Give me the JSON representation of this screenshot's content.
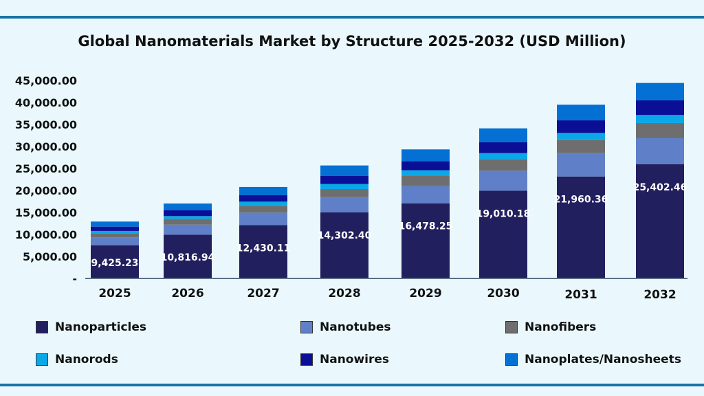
{
  "chart_data": {
    "type": "bar",
    "stacked": true,
    "title": "Global Nanomaterials Market by Structure 2025-2032 (USD Million)",
    "xlabel": "",
    "ylabel": "",
    "ylim": [
      0,
      45000
    ],
    "yticks": [
      "-",
      "5,000.00",
      "10,000.00",
      "15,000.00",
      "20,000.00",
      "25,000.00",
      "30,000.00",
      "35,000.00",
      "40,000.00",
      "45,000.00"
    ],
    "grid": false,
    "legend_position": "bottom",
    "categories": [
      "2025",
      "2026",
      "2027",
      "2028",
      "2029",
      "2030",
      "2031",
      "2032"
    ],
    "series": [
      {
        "name": "Nanoparticles",
        "color": "#221f5e",
        "values": [
          7550,
          9950,
          12140,
          15000,
          17080,
          19950,
          23170,
          25940
        ]
      },
      {
        "name": "Nanotubes",
        "color": "#5f80c8",
        "values": [
          1780,
          2280,
          2810,
          3490,
          3910,
          4530,
          5310,
          5940
        ]
      },
      {
        "name": "Nanofibers",
        "color": "#6e6e6e",
        "values": [
          830,
          1310,
          1560,
          1820,
          2290,
          2660,
          2970,
          3440
        ]
      },
      {
        "name": "Nanorods",
        "color": "#0aa8e6",
        "values": [
          630,
          630,
          940,
          1150,
          1300,
          1340,
          1620,
          1830
        ]
      },
      {
        "name": "Nanowires",
        "color": "#0a0f96",
        "values": [
          980,
          1300,
          1460,
          1820,
          2090,
          2500,
          2860,
          3330
        ]
      },
      {
        "name": "Nanoplates/Nanosheets",
        "color": "#0470d4",
        "values": [
          1160,
          1560,
          1880,
          2400,
          2660,
          3130,
          3550,
          3950
        ]
      }
    ],
    "data_labels": [
      "9,425.23",
      "10,816.94",
      "12,430.11",
      "14,302.40",
      "16,478.25",
      "19,010.18",
      "21,960.36",
      "25,402.46"
    ]
  }
}
